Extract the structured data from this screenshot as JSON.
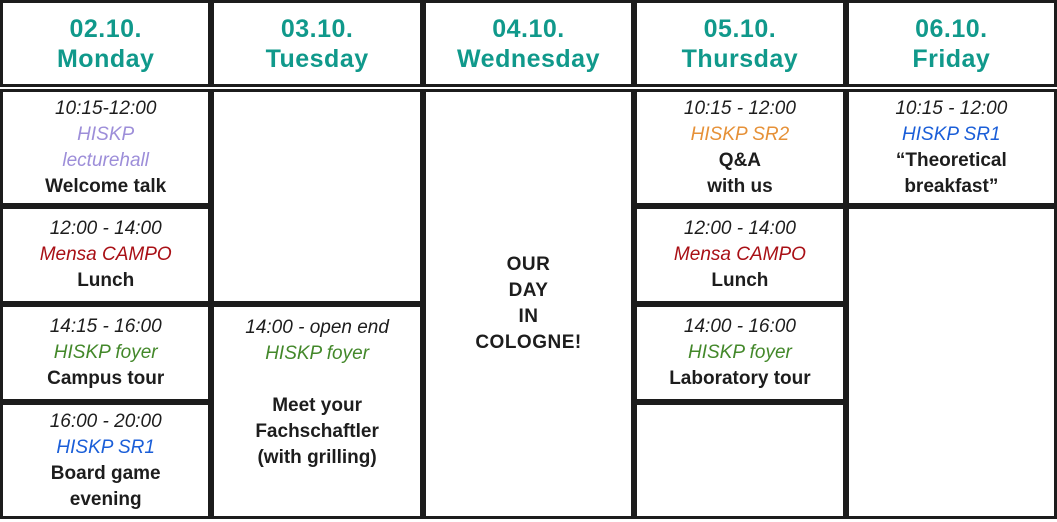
{
  "colors": {
    "header_teal": "#10998b",
    "purple": "#9d8ed9",
    "red": "#a91016",
    "green": "#43882a",
    "blue": "#1a5ed8",
    "orange": "#e69138",
    "text_black": "#1d1d1d",
    "border_black": "#1c1c1c"
  },
  "columns": [
    {
      "header": "02.10.\nMonday",
      "cells": [
        {
          "time": "10:15-12:00",
          "location": "HISKP\nlecturehall",
          "location_color": "purple",
          "event": "Welcome talk"
        },
        {
          "time": "12:00 - 14:00",
          "location": "Mensa CAMPO",
          "location_color": "red",
          "event": "Lunch"
        },
        {
          "time": "14:15 - 16:00",
          "location": "HISKP foyer",
          "location_color": "green",
          "event": "Campus tour"
        },
        {
          "time": "16:00 - 20:00",
          "location": "HISKP SR1",
          "location_color": "blue",
          "event": "Board game\nevening"
        }
      ]
    },
    {
      "header": "03.10.\nTuesday",
      "cells": [
        {},
        {
          "time": "14:00 - open end",
          "location": "HISKP foyer",
          "location_color": "green",
          "event": "Meet your\nFachschaftler\n(with grilling)"
        }
      ]
    },
    {
      "header": "04.10.\nWednesday",
      "cells": [
        {
          "event": "OUR\nDAY\nIN\nCOLOGNE!"
        }
      ]
    },
    {
      "header": "05.10.\nThursday",
      "cells": [
        {
          "time": "10:15 - 12:00",
          "location": "HISKP SR2",
          "location_color": "orange",
          "event": "Q&A\nwith us"
        },
        {
          "time": "12:00 - 14:00",
          "location": "Mensa CAMPO",
          "location_color": "red",
          "event": "Lunch"
        },
        {
          "time": "14:00 - 16:00",
          "location": "HISKP foyer",
          "location_color": "green",
          "event": "Laboratory tour"
        },
        {}
      ]
    },
    {
      "header": "06.10.\nFriday",
      "cells": [
        {
          "time": "10:15 - 12:00",
          "location": "HISKP SR1",
          "location_color": "blue",
          "event": "“Theoretical\nbreakfast”"
        },
        {}
      ]
    }
  ]
}
